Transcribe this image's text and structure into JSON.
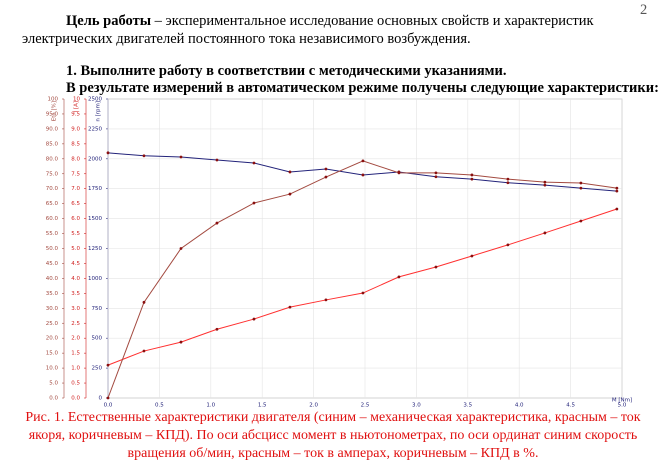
{
  "page_number": "2",
  "goal": {
    "lead": "Цель работы",
    "line1": " – экспериментальное исследование основных свойств и  характеристик",
    "line2": "электрических двигателей постоянного тока независимого возбуждения."
  },
  "step": {
    "line1": "1. Выполните работу в соответствии с методическими указаниями.",
    "line2": "В результате измерений в автоматическом режиме получены следующие характеристики:"
  },
  "chart_data": {
    "type": "line",
    "grid": true,
    "xlabel": "M [Nm]",
    "ylabel": "n [rpm]",
    "y2label": "I [A]",
    "y3label": "Eta [%]",
    "x": [
      0,
      0.35,
      0.71,
      1.06,
      1.42,
      1.77,
      2.12,
      2.48,
      2.83,
      3.19,
      3.54,
      3.89,
      4.25,
      4.6,
      4.95
    ],
    "xlim": [
      0,
      5
    ],
    "xticks": [
      {
        "value": 0,
        "label": "0.0"
      },
      0.5,
      {
        "value": 1,
        "label": "1.0"
      },
      1.5,
      {
        "value": 2,
        "label": "2.0"
      },
      2.5,
      {
        "value": 3,
        "label": "3.0"
      },
      3.5,
      {
        "value": 4,
        "label": "4.0"
      },
      4.5,
      {
        "value": 5,
        "label": "5.0"
      }
    ],
    "ylim": [
      0,
      2500
    ],
    "yticks": [
      0,
      250,
      500,
      750,
      1000,
      1250,
      1500,
      1750,
      2000,
      2250,
      2500
    ],
    "y2lim": [
      0,
      10
    ],
    "y2ticks": [
      {
        "value": 0,
        "label": "0.0"
      },
      0.5,
      {
        "value": 1,
        "label": "1.0"
      },
      1.5,
      {
        "value": 2,
        "label": "2.0"
      },
      2.5,
      {
        "value": 3,
        "label": "3.0"
      },
      3.5,
      {
        "value": 4,
        "label": "4.0"
      },
      4.5,
      {
        "value": 5,
        "label": "5.0"
      },
      5.5,
      {
        "value": 6,
        "label": "6.0"
      },
      6.5,
      {
        "value": 7,
        "label": "7.0"
      },
      7.5,
      {
        "value": 8,
        "label": "8.0"
      },
      8.5,
      {
        "value": 9,
        "label": "9.0"
      },
      9.5,
      10
    ],
    "y3lim": [
      0,
      100
    ],
    "y3ticks": [
      {
        "value": 0,
        "label": "0.0"
      },
      {
        "value": 5,
        "label": "5.0"
      },
      {
        "value": 10,
        "label": "10.0"
      },
      {
        "value": 15,
        "label": "15.0"
      },
      {
        "value": 20,
        "label": "20.0"
      },
      {
        "value": 25,
        "label": "25.0"
      },
      {
        "value": 30,
        "label": "30.0"
      },
      {
        "value": 35,
        "label": "35.0"
      },
      {
        "value": 40,
        "label": "40.0"
      },
      {
        "value": 45,
        "label": "45.0"
      },
      {
        "value": 50,
        "label": "50.0"
      },
      {
        "value": 55,
        "label": "55.0"
      },
      {
        "value": 60,
        "label": "60.0"
      },
      {
        "value": 65,
        "label": "65.0"
      },
      {
        "value": 70,
        "label": "70.0"
      },
      {
        "value": 75,
        "label": "75.0"
      },
      {
        "value": 80,
        "label": "80.0"
      },
      {
        "value": 85,
        "label": "85.0"
      },
      {
        "value": 90,
        "label": "90.0"
      },
      {
        "value": 95,
        "label": "95.0"
      },
      100
    ],
    "series": [
      {
        "color": "#23237a",
        "values": [
          2050,
          2025,
          2015,
          1990,
          1965,
          1890,
          1915,
          1865,
          1890,
          1850,
          1830,
          1800,
          1780,
          1755,
          1730
        ]
      },
      {
        "color": "#ff3030",
        "axis": "y2",
        "values": [
          1.1,
          1.57,
          1.87,
          2.3,
          2.64,
          3.04,
          3.28,
          3.51,
          4.05,
          4.38,
          4.75,
          5.12,
          5.52,
          5.92,
          6.32
        ]
      },
      {
        "color": "#a34a40",
        "axis": "y3",
        "values": [
          0,
          32,
          50,
          58.5,
          65.2,
          68.2,
          73.9,
          79.3,
          75.3,
          75.3,
          74.6,
          73.2,
          72.2,
          71.9,
          70.2
        ]
      }
    ]
  },
  "caption": [
    "Рис. 1. Естественные характеристики двигателя (синим – механическая характеристика, красным – ток",
    "якоря, коричневым – КПД). По оси абсцисс момент в ньютонометрах, по оси ординат синим скорость",
    "вращения об/мин, красным – ток в амперах, коричневым – КПД в %."
  ]
}
